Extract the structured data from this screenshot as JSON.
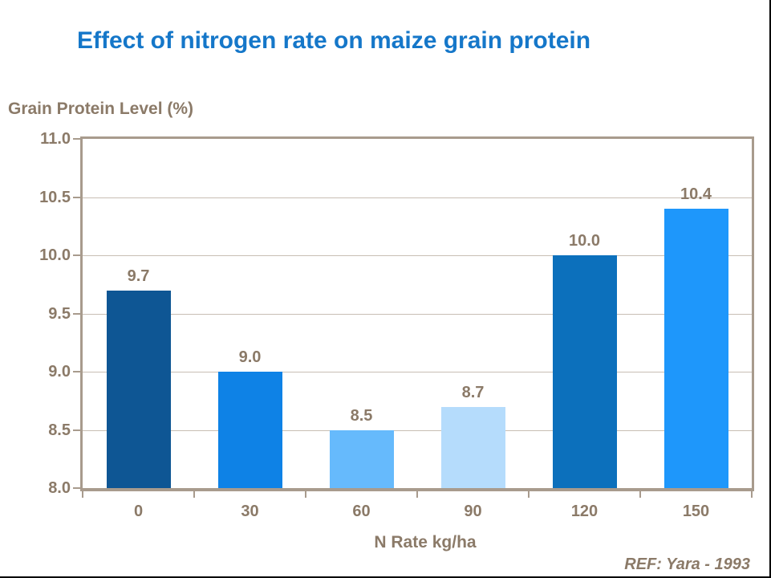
{
  "title": "Effect of nitrogen rate on maize grain protein",
  "footer": {
    "ref": "REF: Yara - 1993"
  },
  "colors": {
    "title_text": "#1577C9",
    "axis_text": "#8B7A68",
    "frame": "#A89B8D",
    "gridline": "#C8BEB4",
    "slide_edge": "#000000"
  },
  "chart_data": {
    "type": "bar",
    "title": "Effect of nitrogen rate on maize grain protein",
    "categories": [
      "0",
      "30",
      "60",
      "90",
      "120",
      "150"
    ],
    "values": [
      9.7,
      9.0,
      8.5,
      8.7,
      10.0,
      10.4
    ],
    "value_labels": [
      "9.7",
      "9.0",
      "8.5",
      "8.7",
      "10.0",
      "10.4"
    ],
    "bar_colors": [
      "#0E5694",
      "#0E82E6",
      "#66BAFC",
      "#B5DCFC",
      "#0C70BC",
      "#1E97FB"
    ],
    "xlabel": "N Rate kg/ha",
    "ylabel": "Grain Protein Level (%)",
    "ylim": [
      8.0,
      11.0
    ],
    "yticks": [
      "11.0",
      "10.5",
      "10.0",
      "9.5",
      "9.0",
      "8.5",
      "8.0"
    ],
    "grid": true,
    "legend_position": "none",
    "annotation": "REF: Yara - 1993"
  }
}
